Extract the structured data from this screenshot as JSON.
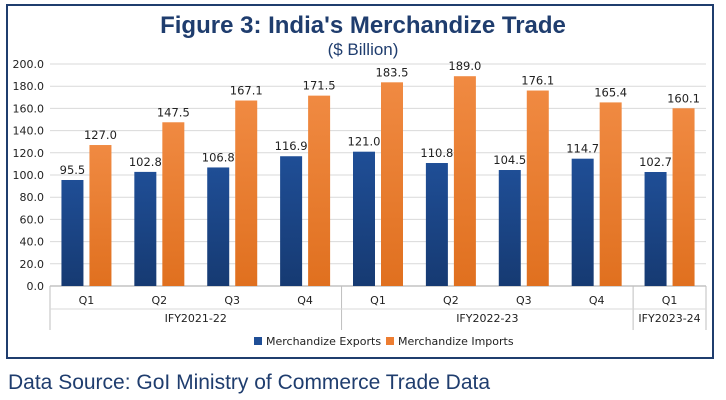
{
  "chart_data": {
    "type": "bar",
    "title": "Figure 3: India's Merchandize Trade",
    "subtitle": "($ Billion)",
    "categories": [
      "Q1",
      "Q2",
      "Q3",
      "Q4",
      "Q1",
      "Q2",
      "Q3",
      "Q4",
      "Q1"
    ],
    "groups": [
      {
        "label": "IFY2021-22",
        "count": 4
      },
      {
        "label": "IFY2022-23",
        "count": 4
      },
      {
        "label": "IFY2023-24",
        "count": 1
      }
    ],
    "series": [
      {
        "name": "Merchandize Exports",
        "color": "#1f4e96",
        "values": [
          95.5,
          102.8,
          106.8,
          116.9,
          121.0,
          110.8,
          104.5,
          114.7,
          102.7
        ]
      },
      {
        "name": "Merchandize Imports",
        "color": "#ed7d31",
        "values": [
          127.0,
          147.5,
          167.1,
          171.5,
          183.5,
          189.0,
          176.1,
          165.4,
          160.1
        ]
      }
    ],
    "ylim": [
      0,
      200
    ],
    "yticks": [
      0,
      20,
      40,
      60,
      80,
      100,
      120,
      140,
      160,
      180,
      200
    ],
    "grid": true,
    "legend_position": "bottom"
  },
  "source": "Data Source: GoI Ministry of Commerce Trade Data"
}
